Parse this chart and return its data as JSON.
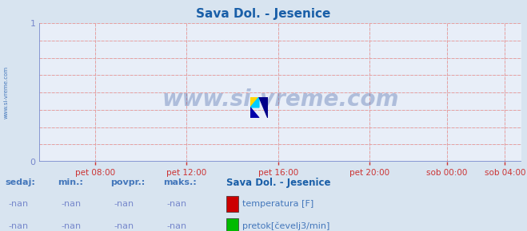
{
  "title": "Sava Dol. - Jesenice",
  "title_color": "#1a5fa8",
  "bg_color": "#d8e4f0",
  "plot_bg_color": "#e8eef8",
  "grid_color_minor": "#e8a0a0",
  "grid_color_major": "#b8cce0",
  "xlim": [
    0,
    1
  ],
  "ylim": [
    0,
    1
  ],
  "yticks": [
    0,
    1
  ],
  "xtick_labels": [
    "pet 08:00",
    "pet 12:00",
    "pet 16:00",
    "pet 20:00",
    "sob 00:00",
    "sob 04:00"
  ],
  "xtick_positions": [
    0.115,
    0.305,
    0.495,
    0.685,
    0.845,
    0.965
  ],
  "watermark": "www.si-vreme.com",
  "watermark_color": "#1a4090",
  "side_text": "www.si-vreme.com",
  "side_text_color": "#4477bb",
  "legend_title": "Sava Dol. - Jesenice",
  "legend_title_color": "#1a5fa8",
  "legend_items": [
    {
      "label": "temperatura [F]",
      "color": "#cc0000"
    },
    {
      "label": "pretok[čevelj3/min]",
      "color": "#00bb00"
    }
  ],
  "table_headers": [
    "sedaj:",
    "min.:",
    "povpr.:",
    "maks.:"
  ],
  "table_values": [
    "-nan",
    "-nan",
    "-nan",
    "-nan"
  ],
  "axis_color": "#7788cc",
  "tick_color": "#cc3333",
  "arrow_color": "#cc2222"
}
